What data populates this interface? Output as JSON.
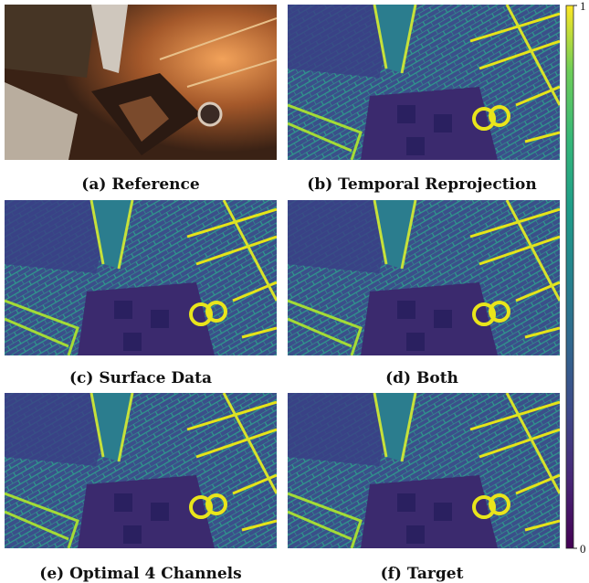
{
  "panels": [
    {
      "caption": "(a) Reference"
    },
    {
      "caption": "(b) Temporal Reprojection"
    },
    {
      "caption": "(c) Surface Data"
    },
    {
      "caption": "(d) Both"
    },
    {
      "caption": "(e) Optimal 4 Channels"
    },
    {
      "caption": "(f) Target"
    }
  ],
  "colorbar": {
    "ticks": [
      0,
      1
    ],
    "lim": [
      0,
      1
    ]
  }
}
